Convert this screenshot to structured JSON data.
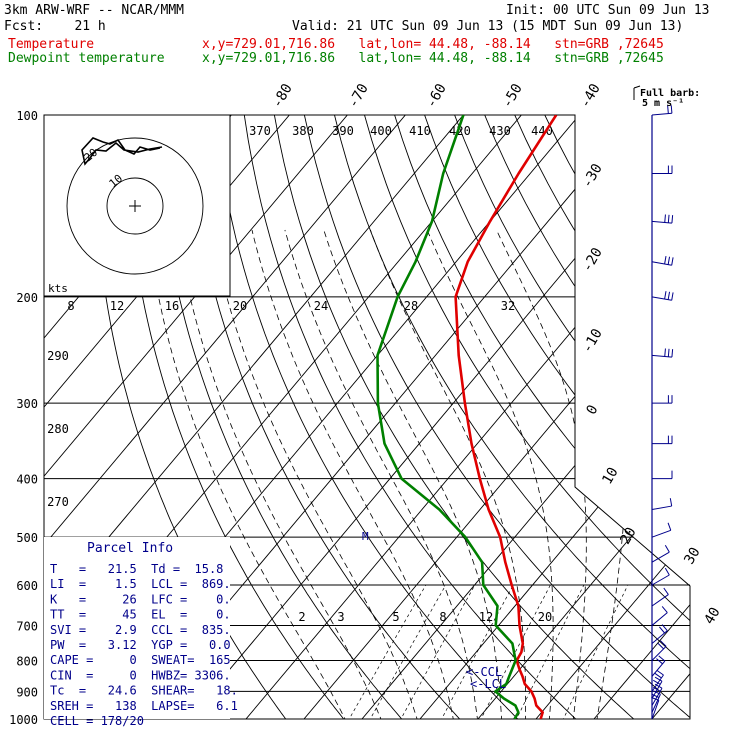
{
  "header": {
    "model": "3km ARW-WRF -- NCAR/MMM",
    "init": "Init: 00 UTC Sun 09 Jun 13",
    "fcst": "Fcst:    21 h",
    "valid": "Valid: 21 UTC Sun 09 Jun 13 (15 MDT Sun 09 Jun 13)",
    "temp_label": "Temperature",
    "dew_label": "Dewpoint temperature",
    "location": "x,y=729.01,716.86   lat,lon= 44.48, -88.14   stn=GRB ,72645"
  },
  "barb_key": {
    "title": "Full barb:",
    "value": "5 m s⁻¹"
  },
  "parcel": {
    "title": "Parcel Info",
    "rows": [
      "T   =   21.5  Td =  15.8",
      "LI  =    1.5  LCL =  869.",
      "K   =     26  LFC =    0.",
      "TT  =     45  EL  =    0.",
      "SVI =    2.9  CCL =  835.",
      "PW  =   3.12  YGP =   0.0",
      "CAPE =     0  SWEAT=  165",
      "CIN  =     0  HWBZ= 3306.",
      "Tc  =   24.6  SHEAR=   18.",
      "SREH =   138  LAPSE=   6.1",
      "CELL = 178/20"
    ]
  },
  "hodograph": {
    "units": "kts",
    "ring_labels": [
      "10",
      "20"
    ]
  },
  "annotations": {
    "ccl": "<-CCL",
    "lcl": "<-LCL",
    "m_marker": "M"
  },
  "chart_data": {
    "type": "line",
    "ylabel": "",
    "pressure_ticks": [
      100,
      200,
      300,
      400,
      500,
      600,
      700,
      800,
      900,
      1000
    ],
    "isotherm_labels": [
      -80,
      -70,
      -60,
      -50,
      -40,
      -30,
      -20,
      -10,
      0,
      10,
      20,
      30,
      40
    ],
    "theta_labels": [
      370,
      380,
      390,
      400,
      410,
      420,
      430,
      440
    ],
    "theta_left_labels": [
      290,
      280,
      270
    ],
    "theta_e_labels": [
      8,
      12,
      16,
      20,
      24,
      28,
      32
    ],
    "mixing_ratio_labels": [
      2,
      3,
      5,
      8,
      12,
      20
    ],
    "series": [
      {
        "name": "Temperature",
        "color": "#e00000",
        "points": [
          [
            1000,
            20.8
          ],
          [
            975,
            20.2
          ],
          [
            950,
            18.1
          ],
          [
            925,
            16.8
          ],
          [
            900,
            15.2
          ],
          [
            875,
            13.0
          ],
          [
            850,
            11.5
          ],
          [
            825,
            9.8
          ],
          [
            800,
            8.2
          ],
          [
            775,
            7.8
          ],
          [
            750,
            6.8
          ],
          [
            700,
            3.6
          ],
          [
            650,
            0.6
          ],
          [
            600,
            -3.6
          ],
          [
            550,
            -8.0
          ],
          [
            500,
            -12.5
          ],
          [
            450,
            -18.5
          ],
          [
            400,
            -24.5
          ],
          [
            350,
            -31.0
          ],
          [
            300,
            -38.0
          ],
          [
            250,
            -46.0
          ],
          [
            200,
            -55.0
          ],
          [
            175,
            -58.0
          ],
          [
            150,
            -60.0
          ],
          [
            125,
            -62.0
          ],
          [
            100,
            -64.0
          ]
        ]
      },
      {
        "name": "Dewpoint temperature",
        "color": "#008000",
        "points": [
          [
            1000,
            16.3
          ],
          [
            975,
            16.0
          ],
          [
            950,
            14.5
          ],
          [
            925,
            11.5
          ],
          [
            900,
            9.0
          ],
          [
            875,
            9.8
          ],
          [
            850,
            9.2
          ],
          [
            800,
            8.0
          ],
          [
            750,
            5.0
          ],
          [
            700,
            -0.5
          ],
          [
            650,
            -3.0
          ],
          [
            600,
            -8.5
          ],
          [
            550,
            -12.0
          ],
          [
            500,
            -18.5
          ],
          [
            450,
            -27.0
          ],
          [
            400,
            -38.0
          ],
          [
            350,
            -46.0
          ],
          [
            300,
            -53.0
          ],
          [
            250,
            -60.0
          ],
          [
            200,
            -65.0
          ],
          [
            175,
            -67.0
          ],
          [
            150,
            -70.0
          ],
          [
            125,
            -75.0
          ],
          [
            100,
            -80.0
          ]
        ]
      }
    ],
    "winds_kts": [
      {
        "p": 1000,
        "dir": 200,
        "spd": 10
      },
      {
        "p": 975,
        "dir": 205,
        "spd": 15
      },
      {
        "p": 950,
        "dir": 210,
        "spd": 20
      },
      {
        "p": 925,
        "dir": 210,
        "spd": 20
      },
      {
        "p": 900,
        "dir": 215,
        "spd": 20
      },
      {
        "p": 850,
        "dir": 220,
        "spd": 20
      },
      {
        "p": 800,
        "dir": 225,
        "spd": 20
      },
      {
        "p": 750,
        "dir": 230,
        "spd": 15
      },
      {
        "p": 700,
        "dir": 230,
        "spd": 10
      },
      {
        "p": 650,
        "dir": 235,
        "spd": 10
      },
      {
        "p": 600,
        "dir": 240,
        "spd": 10
      },
      {
        "p": 550,
        "dir": 240,
        "spd": 10
      },
      {
        "p": 500,
        "dir": 250,
        "spd": 10
      },
      {
        "p": 450,
        "dir": 260,
        "spd": 10
      },
      {
        "p": 400,
        "dir": 270,
        "spd": 10
      },
      {
        "p": 350,
        "dir": 270,
        "spd": 15
      },
      {
        "p": 300,
        "dir": 270,
        "spd": 20
      },
      {
        "p": 250,
        "dir": 275,
        "spd": 25
      },
      {
        "p": 200,
        "dir": 280,
        "spd": 30
      },
      {
        "p": 175,
        "dir": 280,
        "spd": 30
      },
      {
        "p": 150,
        "dir": 275,
        "spd": 25
      },
      {
        "p": 125,
        "dir": 270,
        "spd": 20
      },
      {
        "p": 100,
        "dir": 265,
        "spd": 20
      }
    ]
  }
}
